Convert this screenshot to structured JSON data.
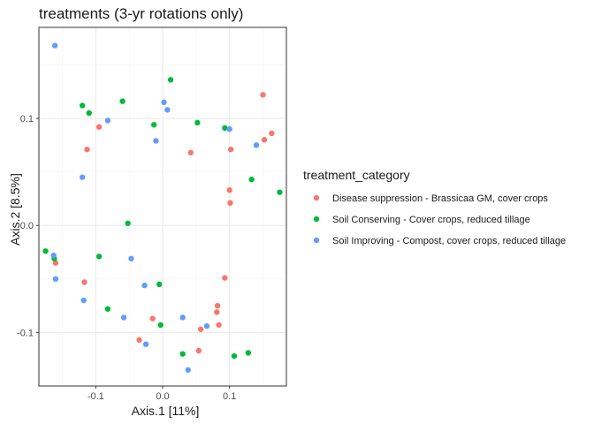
{
  "chart_data": {
    "type": "scatter",
    "title": "treatments (3-yr rotations only)",
    "xlabel": "Axis.1   [11%]",
    "ylabel": "Axis.2   [8.5%]",
    "xlim": [
      -0.185,
      0.185
    ],
    "ylim": [
      -0.15,
      0.185
    ],
    "x_ticks": [
      -0.1,
      0.0,
      0.1
    ],
    "x_tick_labels": [
      "-0.1",
      "0.0",
      "0.1"
    ],
    "y_ticks": [
      -0.1,
      0.0,
      0.1
    ],
    "y_tick_labels": [
      "-0.1",
      "0.0",
      "0.1"
    ],
    "grid": true,
    "legend": {
      "title": "treatment_category",
      "placement": "right"
    },
    "series": [
      {
        "name": "Disease suppression - Brassicaa GM, cover crops",
        "color": "#F8766D",
        "points": [
          [
            0.15,
            0.122
          ],
          [
            0.163,
            0.086
          ],
          [
            0.152,
            0.08
          ],
          [
            -0.095,
            0.092
          ],
          [
            -0.113,
            0.071
          ],
          [
            0.042,
            0.068
          ],
          [
            0.102,
            0.071
          ],
          [
            0.1,
            0.033
          ],
          [
            0.101,
            0.021
          ],
          [
            -0.16,
            -0.035
          ],
          [
            -0.117,
            -0.053
          ],
          [
            0.093,
            -0.049
          ],
          [
            0.082,
            -0.075
          ],
          [
            0.081,
            -0.081
          ],
          [
            0.084,
            -0.093
          ],
          [
            -0.015,
            -0.087
          ],
          [
            0.057,
            -0.097
          ],
          [
            -0.035,
            -0.107
          ],
          [
            0.054,
            -0.117
          ]
        ]
      },
      {
        "name": "Soil Conserving - Cover crops, reduced tillage",
        "color": "#00BA38",
        "points": [
          [
            0.012,
            0.136
          ],
          [
            -0.06,
            0.116
          ],
          [
            -0.12,
            0.112
          ],
          [
            -0.11,
            0.105
          ],
          [
            -0.013,
            0.094
          ],
          [
            0.052,
            0.096
          ],
          [
            0.093,
            0.091
          ],
          [
            0.133,
            0.043
          ],
          [
            0.175,
            0.031
          ],
          [
            -0.052,
            0.002
          ],
          [
            -0.175,
            -0.024
          ],
          [
            -0.162,
            -0.031
          ],
          [
            -0.095,
            -0.029
          ],
          [
            -0.005,
            -0.055
          ],
          [
            -0.082,
            -0.078
          ],
          [
            -0.003,
            -0.093
          ],
          [
            0.03,
            -0.12
          ],
          [
            0.107,
            -0.122
          ],
          [
            0.128,
            -0.119
          ]
        ]
      },
      {
        "name": "Soil Improving - Compost, cover crops, reduced tillage",
        "color": "#619CFF",
        "points": [
          [
            -0.161,
            0.168
          ],
          [
            0.002,
            0.115
          ],
          [
            0.007,
            0.108
          ],
          [
            -0.082,
            0.098
          ],
          [
            0.1,
            0.09
          ],
          [
            0.14,
            0.075
          ],
          [
            -0.01,
            0.079
          ],
          [
            -0.12,
            0.045
          ],
          [
            -0.163,
            -0.028
          ],
          [
            -0.047,
            -0.031
          ],
          [
            -0.16,
            -0.05
          ],
          [
            -0.027,
            -0.056
          ],
          [
            -0.118,
            -0.07
          ],
          [
            -0.058,
            -0.086
          ],
          [
            0.03,
            -0.086
          ],
          [
            0.066,
            -0.094
          ],
          [
            -0.025,
            -0.111
          ],
          [
            0.038,
            -0.135
          ]
        ]
      }
    ]
  }
}
